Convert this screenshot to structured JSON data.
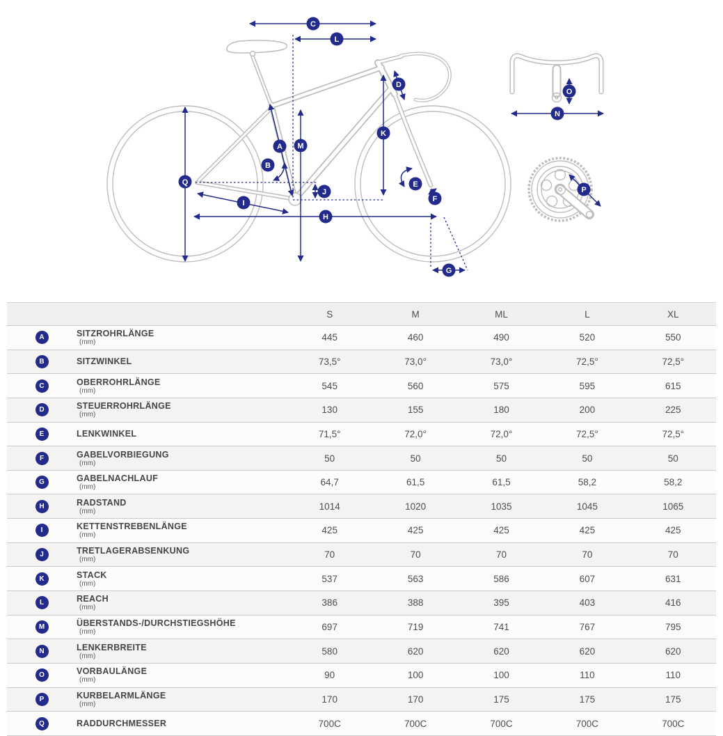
{
  "colors": {
    "accent": "#222a8c",
    "lineart": "#bdbdba"
  },
  "table": {
    "columns": [
      "S",
      "M",
      "ML",
      "L",
      "XL"
    ],
    "rows": [
      {
        "key": "A",
        "label": "SITZROHRLÄNGE",
        "unit": "(mm)",
        "values": [
          "445",
          "460",
          "490",
          "520",
          "550"
        ]
      },
      {
        "key": "B",
        "label": "SITZWINKEL",
        "unit": "",
        "values": [
          "73,5°",
          "73,0°",
          "73,0°",
          "72,5°",
          "72,5°"
        ]
      },
      {
        "key": "C",
        "label": "OBERROHRLÄNGE",
        "unit": "(mm)",
        "values": [
          "545",
          "560",
          "575",
          "595",
          "615"
        ]
      },
      {
        "key": "D",
        "label": "STEUERROHRLÄNGE",
        "unit": "(mm)",
        "values": [
          "130",
          "155",
          "180",
          "200",
          "225"
        ]
      },
      {
        "key": "E",
        "label": "LENKWINKEL",
        "unit": "",
        "values": [
          "71,5°",
          "72,0°",
          "72,0°",
          "72,5°",
          "72,5°"
        ]
      },
      {
        "key": "F",
        "label": "GABELVORBIEGUNG",
        "unit": "(mm)",
        "values": [
          "50",
          "50",
          "50",
          "50",
          "50"
        ]
      },
      {
        "key": "G",
        "label": "GABELNACHLAUF",
        "unit": "(mm)",
        "values": [
          "64,7",
          "61,5",
          "61,5",
          "58,2",
          "58,2"
        ]
      },
      {
        "key": "H",
        "label": "RADSTAND",
        "unit": "(mm)",
        "values": [
          "1014",
          "1020",
          "1035",
          "1045",
          "1065"
        ]
      },
      {
        "key": "I",
        "label": "KETTENSTREBENLÄNGE",
        "unit": "(mm)",
        "values": [
          "425",
          "425",
          "425",
          "425",
          "425"
        ]
      },
      {
        "key": "J",
        "label": "TRETLAGERABSENKUNG",
        "unit": "(mm)",
        "values": [
          "70",
          "70",
          "70",
          "70",
          "70"
        ]
      },
      {
        "key": "K",
        "label": "STACK",
        "unit": "(mm)",
        "values": [
          "537",
          "563",
          "586",
          "607",
          "631"
        ]
      },
      {
        "key": "L",
        "label": "REACH",
        "unit": "(mm)",
        "values": [
          "386",
          "388",
          "395",
          "403",
          "416"
        ]
      },
      {
        "key": "M",
        "label": "ÜBERSTANDS-/DURCHSTIEGSHÖHE",
        "unit": "(mm)",
        "values": [
          "697",
          "719",
          "741",
          "767",
          "795"
        ]
      },
      {
        "key": "N",
        "label": "LENKERBREITE",
        "unit": "(mm)",
        "values": [
          "580",
          "620",
          "620",
          "620",
          "620"
        ]
      },
      {
        "key": "O",
        "label": "VORBAULÄNGE",
        "unit": "(mm)",
        "values": [
          "90",
          "100",
          "100",
          "110",
          "110"
        ]
      },
      {
        "key": "P",
        "label": "KURBELARMLÄNGE",
        "unit": "(mm)",
        "values": [
          "170",
          "170",
          "175",
          "175",
          "175"
        ]
      },
      {
        "key": "Q",
        "label": "RADDURCHMESSER",
        "unit": "",
        "values": [
          "700C",
          "700C",
          "700C",
          "700C",
          "700C"
        ]
      }
    ]
  }
}
